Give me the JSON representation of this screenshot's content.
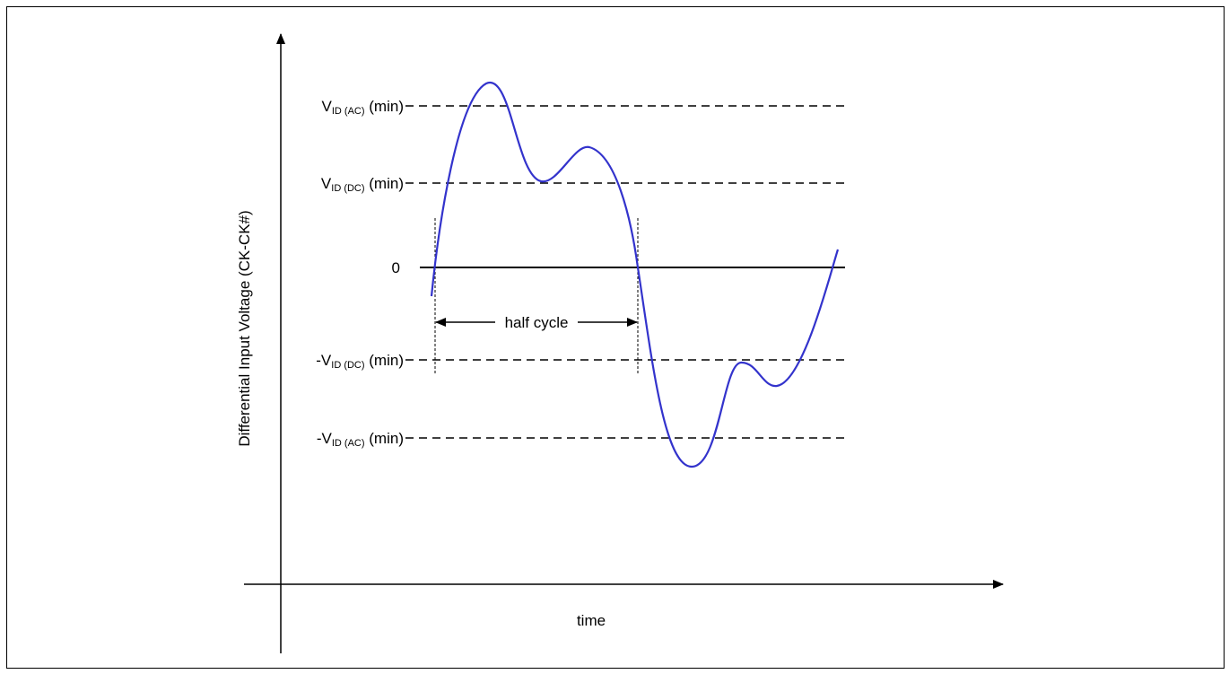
{
  "y_axis_label": "Differential Input Voltage (CK-CK#)",
  "x_axis_label": "time",
  "levels": {
    "vid_ac_pos": {
      "prefix": "",
      "main": "V",
      "sub": "ID (AC)",
      "suffix": " (min)"
    },
    "vid_dc_pos": {
      "prefix": "",
      "main": "V",
      "sub": "ID (DC)",
      "suffix": " (min)"
    },
    "zero": {
      "text": "0"
    },
    "vid_dc_neg": {
      "prefix": "-",
      "main": "V",
      "sub": "ID (DC)",
      "suffix": " (min)"
    },
    "vid_ac_neg": {
      "prefix": "-",
      "main": "V",
      "sub": "ID (AC)",
      "suffix": " (min)"
    }
  },
  "half_cycle_label": "half cycle",
  "colors": {
    "waveform": "#3333cc",
    "lines": "#000000"
  }
}
